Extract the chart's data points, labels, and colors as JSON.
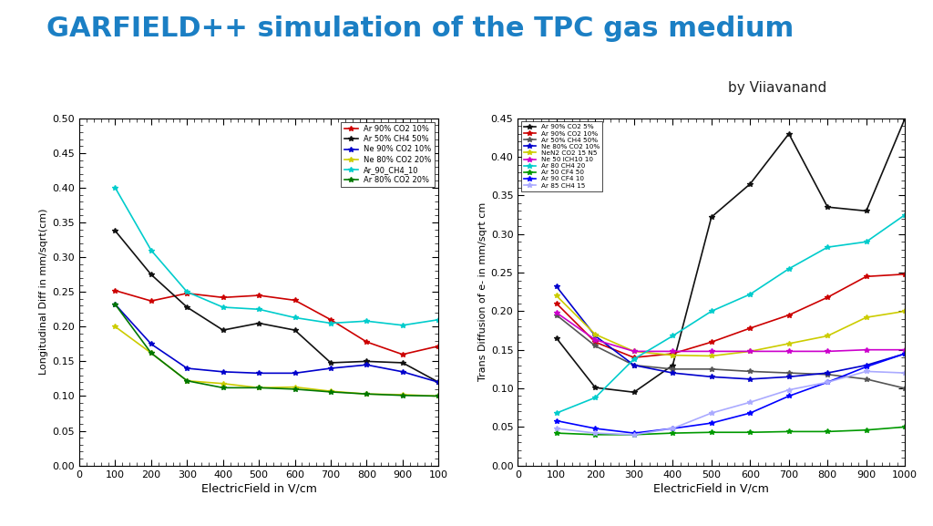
{
  "title": "GARFIELD++ simulation of the TPC gas medium",
  "subtitle": "by Viiavanand",
  "title_color": "#1B7FC4",
  "background_color": "#ffffff",
  "x_field": [
    100,
    200,
    300,
    400,
    500,
    600,
    700,
    800,
    900,
    1000
  ],
  "left": {
    "ylabel": "Longitudinal Diff in mm/sqrt(cm)",
    "xlabel": "ElectricField in V/cm",
    "ylim": [
      0,
      0.5
    ],
    "xlim": [
      0,
      1000
    ],
    "series": [
      {
        "label": "Ar 90% CO2 10%",
        "color": "#cc0000",
        "data": [
          0.252,
          0.237,
          0.248,
          0.242,
          0.245,
          0.238,
          0.21,
          0.178,
          0.16,
          0.172
        ]
      },
      {
        "label": "Ar 50% CH4 50%",
        "color": "#111111",
        "data": [
          0.338,
          0.275,
          0.228,
          0.195,
          0.205,
          0.195,
          0.148,
          0.15,
          0.148,
          0.12
        ]
      },
      {
        "label": "Ne 90% CO2 10%",
        "color": "#0000cc",
        "data": [
          0.232,
          0.175,
          0.14,
          0.135,
          0.133,
          0.133,
          0.14,
          0.145,
          0.135,
          0.12
        ]
      },
      {
        "label": "Ne 80% CO2 20%",
        "color": "#cccc00",
        "data": [
          0.2,
          0.162,
          0.122,
          0.118,
          0.112,
          0.113,
          0.107,
          0.103,
          0.102,
          0.1
        ]
      },
      {
        "label": "Ar_90_CH4_10",
        "color": "#00cccc",
        "data": [
          0.4,
          0.31,
          0.25,
          0.228,
          0.225,
          0.213,
          0.205,
          0.208,
          0.202,
          0.21
        ]
      },
      {
        "label": "Ar 80% CO2 20%",
        "color": "#007700",
        "data": [
          0.232,
          0.162,
          0.122,
          0.112,
          0.112,
          0.11,
          0.106,
          0.103,
          0.101,
          0.1
        ]
      }
    ]
  },
  "right": {
    "ylabel": "Trans Diffusion of e- in mm/sqrt cm",
    "xlabel": "ElectricField in V/cm",
    "ylim": [
      0,
      0.45
    ],
    "xlim": [
      0,
      1000
    ],
    "series": [
      {
        "label": "Ar 90% CO2 5%",
        "color": "#111111",
        "data": [
          0.165,
          0.101,
          0.095,
          0.13,
          0.322,
          0.365,
          0.43,
          0.335,
          0.33,
          0.45
        ]
      },
      {
        "label": "Ar 90% CO2 10%",
        "color": "#cc0000",
        "data": [
          0.21,
          0.16,
          0.14,
          0.145,
          0.16,
          0.178,
          0.195,
          0.218,
          0.245,
          0.248
        ]
      },
      {
        "label": "Ar 50% CH4 50%",
        "color": "#555555",
        "data": [
          0.195,
          0.155,
          0.13,
          0.125,
          0.125,
          0.122,
          0.12,
          0.118,
          0.112,
          0.1
        ]
      },
      {
        "label": "Ne 80% CO2 10%",
        "color": "#0000cc",
        "data": [
          0.232,
          0.168,
          0.13,
          0.12,
          0.115,
          0.112,
          0.115,
          0.12,
          0.13,
          0.145
        ]
      },
      {
        "label": "NeN2 CO2 15 N5",
        "color": "#cccc00",
        "data": [
          0.22,
          0.17,
          0.148,
          0.143,
          0.142,
          0.148,
          0.158,
          0.168,
          0.192,
          0.2
        ]
      },
      {
        "label": "Ne 50 iCH10 10",
        "color": "#cc00cc",
        "data": [
          0.198,
          0.163,
          0.148,
          0.148,
          0.148,
          0.148,
          0.148,
          0.148,
          0.15,
          0.15
        ]
      },
      {
        "label": "Ar 80 CH4 20",
        "color": "#00cccc",
        "data": [
          0.068,
          0.088,
          0.138,
          0.168,
          0.2,
          0.222,
          0.255,
          0.283,
          0.29,
          0.325
        ]
      },
      {
        "label": "Ar 50 CF4 50",
        "color": "#009900",
        "data": [
          0.042,
          0.04,
          0.04,
          0.042,
          0.043,
          0.043,
          0.044,
          0.044,
          0.046,
          0.05
        ]
      },
      {
        "label": "Ar 90 CF4 10",
        "color": "#0000ff",
        "data": [
          0.058,
          0.048,
          0.042,
          0.048,
          0.055,
          0.068,
          0.09,
          0.108,
          0.128,
          0.145
        ]
      },
      {
        "label": "Ar 85 CH4 15",
        "color": "#aaaaff",
        "data": [
          0.048,
          0.042,
          0.04,
          0.048,
          0.068,
          0.082,
          0.098,
          0.108,
          0.122,
          0.12
        ]
      }
    ]
  }
}
